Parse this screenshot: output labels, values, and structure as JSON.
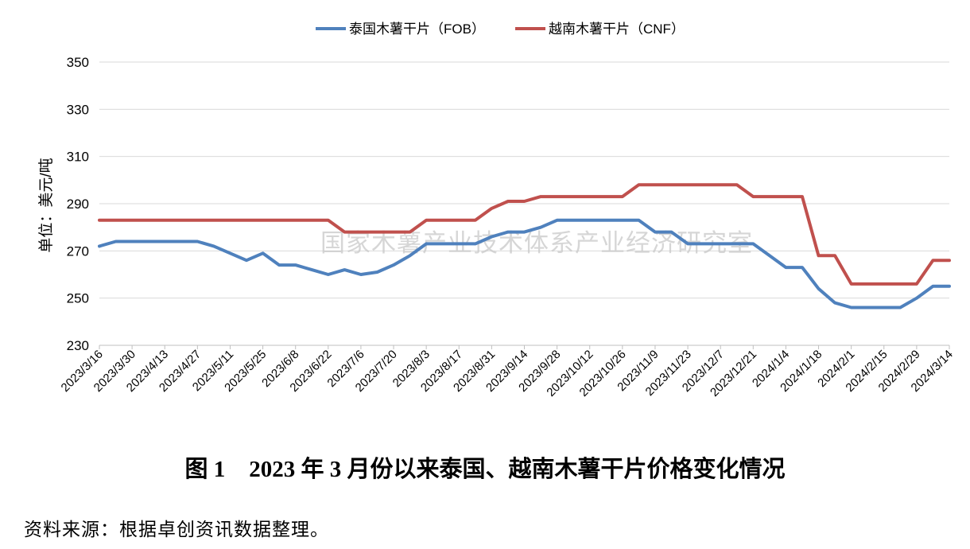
{
  "caption": {
    "number": "图 1",
    "text": "2023 年 3 月份以来泰国、越南木薯干片价格变化情况"
  },
  "source_note": "资料来源：根据卓创资讯数据整理。",
  "chart_data": {
    "type": "line",
    "ylabel": "单位：美元/吨",
    "ylim": [
      230,
      350
    ],
    "yticks": [
      230,
      250,
      270,
      290,
      310,
      330,
      350
    ],
    "grid": true,
    "legend_position": "top-center",
    "watermark": "国家木薯产业技术体系产业经济研究室",
    "xtick_labels": [
      "2023/3/16",
      "2023/3/30",
      "2023/4/13",
      "2023/4/27",
      "2023/5/11",
      "2023/5/25",
      "2023/6/8",
      "2023/6/22",
      "2023/7/6",
      "2023/7/20",
      "2023/8/3",
      "2023/8/17",
      "2023/8/31",
      "2023/9/14",
      "2023/9/28",
      "2023/10/12",
      "2023/10/26",
      "2023/11/9",
      "2023/11/23",
      "2023/12/7",
      "2023/12/21",
      "2024/1/4",
      "2024/1/18",
      "2024/2/1",
      "2024/2/15",
      "2024/2/29",
      "2024/3/14"
    ],
    "x": [
      "2023/3/16",
      "2023/3/23",
      "2023/3/30",
      "2023/4/6",
      "2023/4/13",
      "2023/4/20",
      "2023/4/27",
      "2023/5/4",
      "2023/5/11",
      "2023/5/18",
      "2023/5/25",
      "2023/6/1",
      "2023/6/8",
      "2023/6/15",
      "2023/6/22",
      "2023/6/29",
      "2023/7/6",
      "2023/7/13",
      "2023/7/20",
      "2023/7/27",
      "2023/8/3",
      "2023/8/10",
      "2023/8/17",
      "2023/8/24",
      "2023/8/31",
      "2023/9/7",
      "2023/9/14",
      "2023/9/21",
      "2023/9/28",
      "2023/10/5",
      "2023/10/12",
      "2023/10/19",
      "2023/10/26",
      "2023/11/2",
      "2023/11/9",
      "2023/11/16",
      "2023/11/23",
      "2023/11/30",
      "2023/12/7",
      "2023/12/14",
      "2023/12/21",
      "2023/12/28",
      "2024/1/4",
      "2024/1/11",
      "2024/1/18",
      "2024/1/25",
      "2024/2/1",
      "2024/2/8",
      "2024/2/15",
      "2024/2/22",
      "2024/2/29",
      "2024/3/7",
      "2024/3/14"
    ],
    "series": [
      {
        "name": "泰国木薯干片（FOB）",
        "color": "#4F81BD",
        "values": [
          272,
          274,
          274,
          274,
          274,
          274,
          274,
          272,
          269,
          266,
          269,
          264,
          264,
          262,
          260,
          262,
          260,
          261,
          264,
          268,
          273,
          273,
          273,
          273,
          276,
          278,
          278,
          280,
          283,
          283,
          283,
          283,
          283,
          283,
          278,
          278,
          273,
          273,
          273,
          273,
          273,
          268,
          263,
          263,
          254,
          248,
          246,
          246,
          246,
          246,
          250,
          255,
          255
        ]
      },
      {
        "name": "越南木薯干片（CNF）",
        "color": "#C0504D",
        "values": [
          283,
          283,
          283,
          283,
          283,
          283,
          283,
          283,
          283,
          283,
          283,
          283,
          283,
          283,
          283,
          278,
          278,
          278,
          278,
          278,
          283,
          283,
          283,
          283,
          288,
          291,
          291,
          293,
          293,
          293,
          293,
          293,
          293,
          298,
          298,
          298,
          298,
          298,
          298,
          298,
          293,
          293,
          293,
          293,
          268,
          268,
          256,
          256,
          256,
          256,
          256,
          266,
          266
        ]
      }
    ]
  }
}
